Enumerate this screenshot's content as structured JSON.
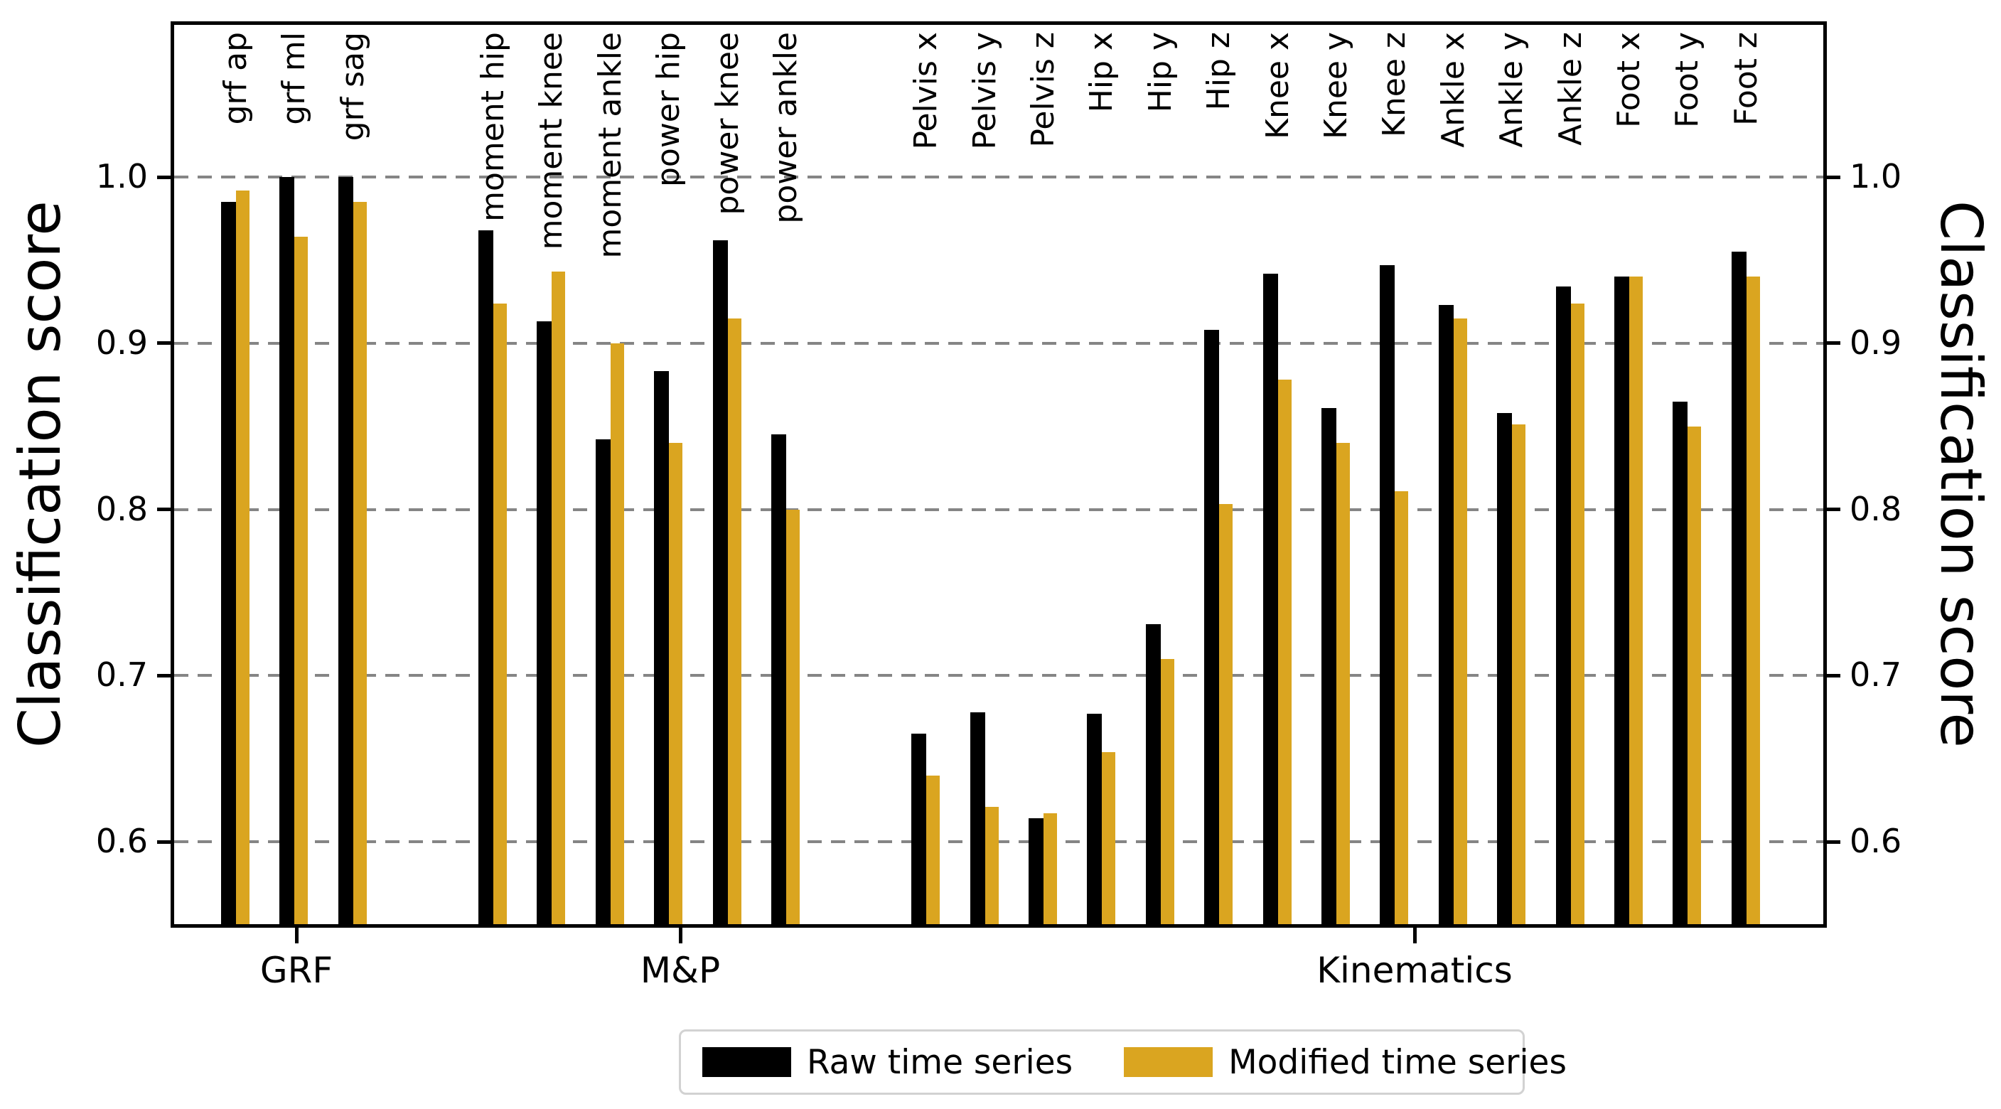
{
  "chart_data": {
    "type": "bar",
    "title": "",
    "ylabel_left": "Classification score",
    "ylabel_right": "Classification score",
    "xlabel": "",
    "ylim": [
      0.55,
      1.09
    ],
    "yticks": [
      1.0,
      0.9,
      0.8,
      0.7,
      0.6
    ],
    "grid": "horizontal dashed gray lines at each y tick",
    "legend_position": "lower center, outside plot",
    "series": [
      {
        "name": "Raw time series",
        "color": "#000000"
      },
      {
        "name": "Modified time series",
        "color": "#DAA520"
      }
    ],
    "groups": [
      {
        "label": "GRF",
        "items": [
          {
            "label": "grf ap",
            "raw": 0.985,
            "modified": 0.992
          },
          {
            "label": "grf ml",
            "raw": 1.0,
            "modified": 0.964
          },
          {
            "label": "grf sag",
            "raw": 1.0,
            "modified": 0.985
          }
        ]
      },
      {
        "label": "M&P",
        "items": [
          {
            "label": "moment hip",
            "raw": 0.968,
            "modified": 0.924
          },
          {
            "label": "moment knee",
            "raw": 0.913,
            "modified": 0.943
          },
          {
            "label": "moment ankle",
            "raw": 0.842,
            "modified": 0.9
          },
          {
            "label": "power hip",
            "raw": 0.883,
            "modified": 0.84
          },
          {
            "label": "power knee",
            "raw": 0.962,
            "modified": 0.915
          },
          {
            "label": "power ankle",
            "raw": 0.845,
            "modified": 0.8
          }
        ]
      },
      {
        "label": "Kinematics",
        "items": [
          {
            "label": "Pelvis x",
            "raw": 0.665,
            "modified": 0.64
          },
          {
            "label": "Pelvis y",
            "raw": 0.678,
            "modified": 0.621
          },
          {
            "label": "Pelvis z",
            "raw": 0.614,
            "modified": 0.617
          },
          {
            "label": "Hip x",
            "raw": 0.677,
            "modified": 0.654
          },
          {
            "label": "Hip y",
            "raw": 0.731,
            "modified": 0.71
          },
          {
            "label": "Hip z",
            "raw": 0.908,
            "modified": 0.803
          },
          {
            "label": "Knee x",
            "raw": 0.942,
            "modified": 0.878
          },
          {
            "label": "Knee y",
            "raw": 0.861,
            "modified": 0.84
          },
          {
            "label": "Knee z",
            "raw": 0.947,
            "modified": 0.811
          },
          {
            "label": "Ankle x",
            "raw": 0.923,
            "modified": 0.915
          },
          {
            "label": "Ankle y",
            "raw": 0.858,
            "modified": 0.851
          },
          {
            "label": "Ankle z",
            "raw": 0.934,
            "modified": 0.924
          },
          {
            "label": "Foot x",
            "raw": 0.94,
            "modified": 0.94
          },
          {
            "label": "Foot y",
            "raw": 0.865,
            "modified": 0.85
          },
          {
            "label": "Foot z",
            "raw": 0.955,
            "modified": 0.94
          }
        ]
      }
    ]
  },
  "colors": {
    "raw_bar": "#000000",
    "modified_bar": "#DAA520",
    "grid": "#858585",
    "frame": "#000000",
    "legend_border": "#d2d2d2",
    "background": "#ffffff"
  }
}
